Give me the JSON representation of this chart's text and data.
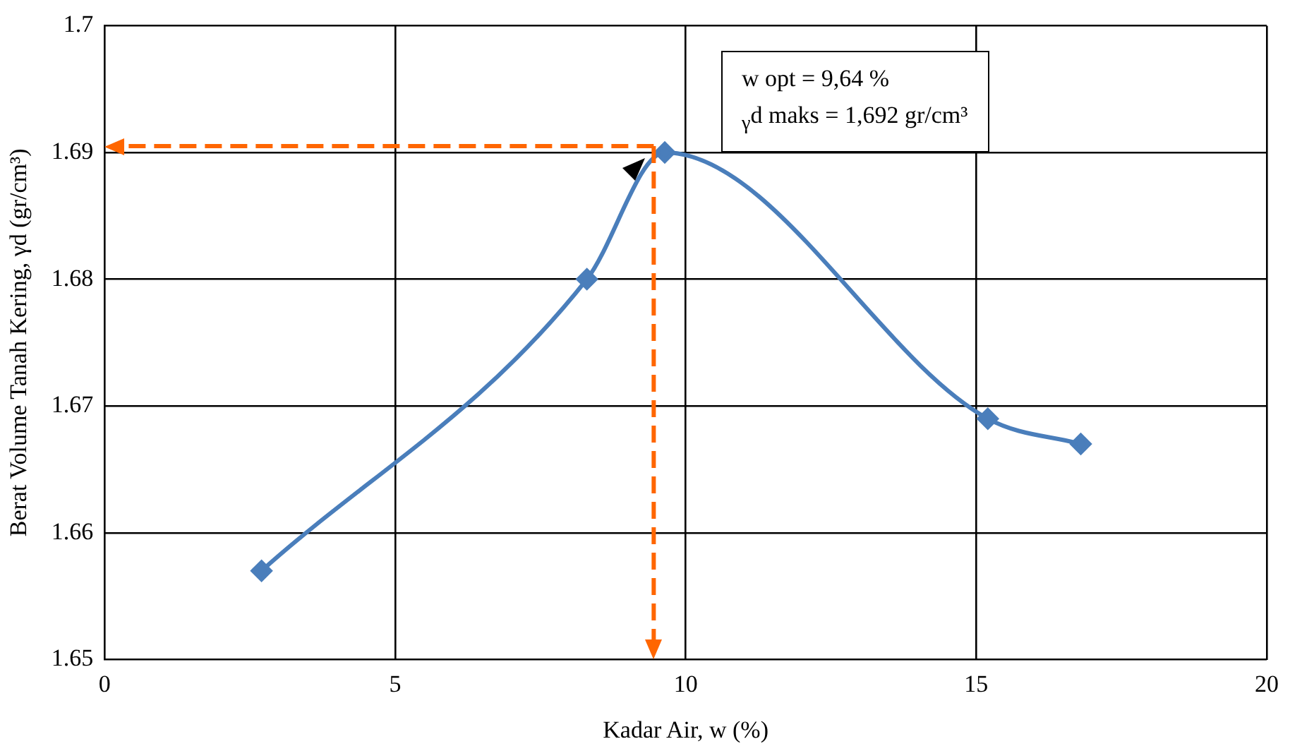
{
  "chart_data": {
    "type": "line",
    "xlabel": "Kadar Air, w (%)",
    "ylabel": "Berat Volume Tanah Kering, γd (gr/cm³)",
    "x": [
      2.7,
      8.3,
      9.64,
      15.2,
      16.8
    ],
    "series": [
      {
        "color": "#4a7ebb",
        "values": [
          1.657,
          1.68,
          1.69,
          1.669,
          1.667
        ]
      }
    ],
    "xlim": [
      0,
      20
    ],
    "xticks": [
      0,
      5,
      10,
      15,
      20
    ],
    "ylim": [
      1.65,
      1.7
    ],
    "yticks": [
      1.65,
      1.66,
      1.67,
      1.68,
      1.69,
      1.7
    ],
    "grid": true,
    "legend": false,
    "marker": "diamond",
    "line_style": "solid",
    "ref_lines": [
      {
        "axis": "y",
        "value": 1.6905,
        "color": "#ff6600",
        "line_style": "dashed"
      },
      {
        "axis": "x",
        "value": 9.45,
        "color": "#ff6600",
        "line_style": "dashed"
      }
    ],
    "annotations": [
      "w opt = 9,64 %",
      "$_{γ}$d maks = 1,692 gr/cm³"
    ]
  }
}
